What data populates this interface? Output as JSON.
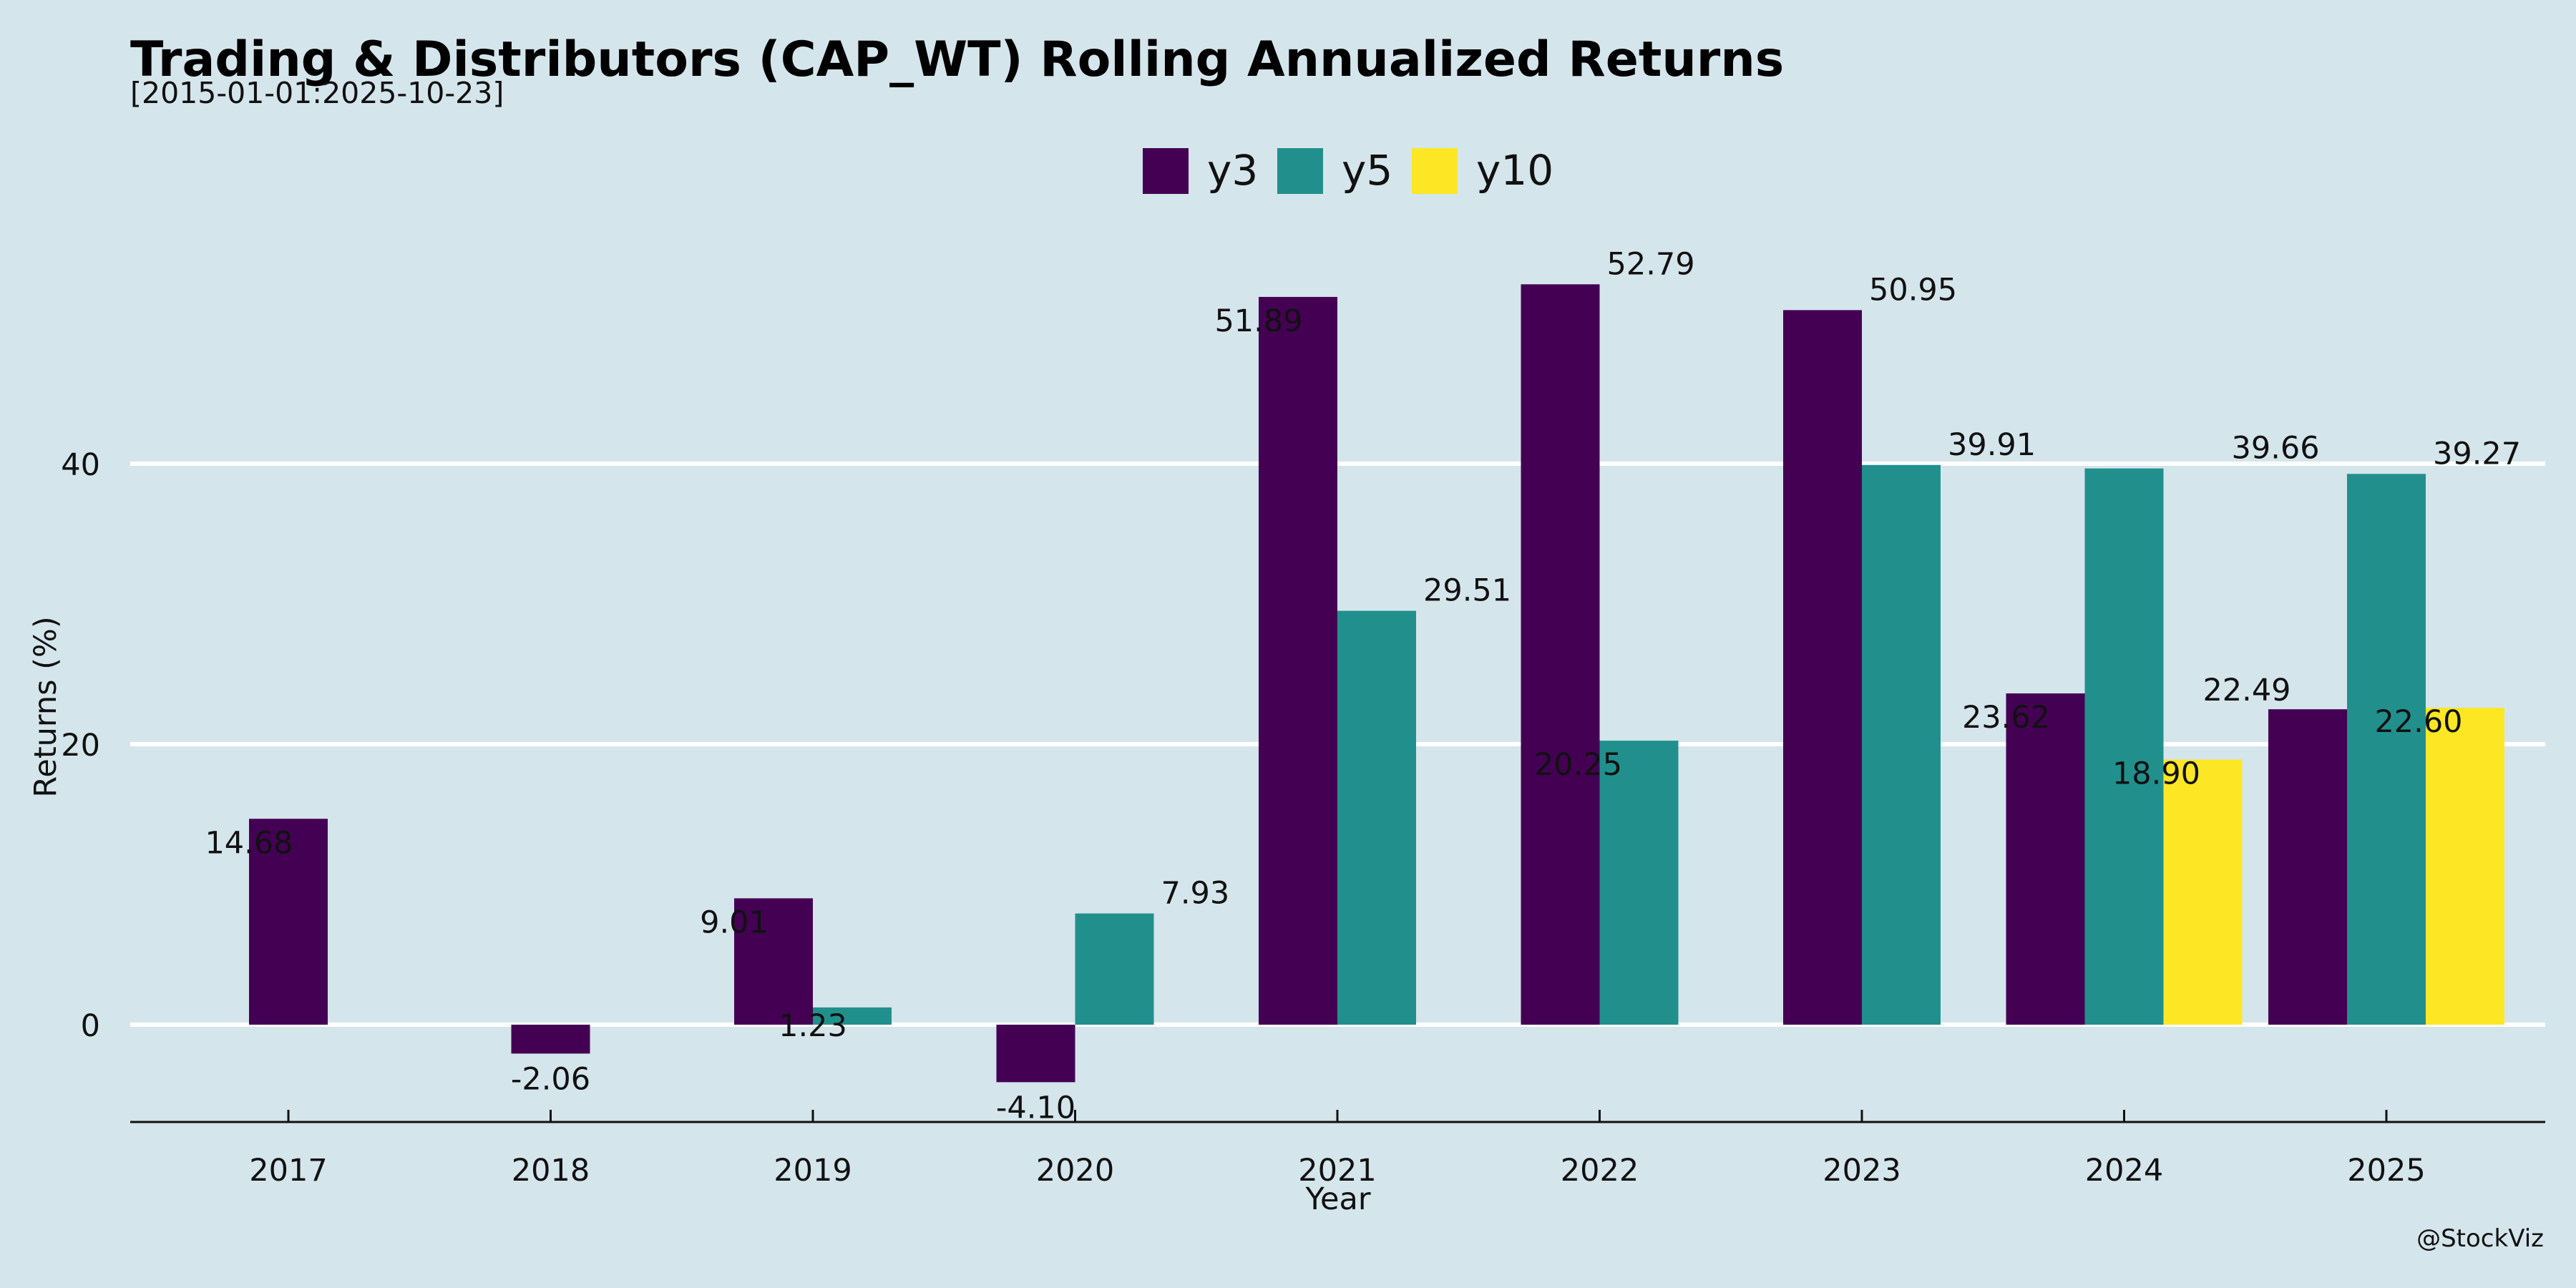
{
  "chart_data": {
    "type": "bar",
    "title": "Trading & Distributors (CAP_WT) Rolling Annualized Returns",
    "subtitle": "[2015-01-01:2025-10-23]",
    "xlabel": "Year",
    "ylabel": "Returns (%)",
    "categories": [
      "2017",
      "2018",
      "2019",
      "2020",
      "2021",
      "2022",
      "2023",
      "2024",
      "2025"
    ],
    "series": [
      {
        "name": "y3",
        "color": "#440154",
        "values": [
          14.68,
          -2.06,
          9.01,
          -4.1,
          51.89,
          52.79,
          50.95,
          23.62,
          22.49
        ],
        "labels": [
          "14.68",
          "-2.06",
          "9.01",
          "-4.10",
          "51.89",
          "52.79",
          "50.95",
          "23.62",
          "22.49"
        ]
      },
      {
        "name": "y5",
        "color": "#21908d",
        "values": [
          null,
          null,
          1.23,
          7.93,
          29.51,
          20.25,
          39.91,
          39.66,
          39.27
        ],
        "labels": [
          null,
          null,
          "1.23",
          "7.93",
          "29.51",
          "20.25",
          "39.91",
          "39.66",
          "39.27"
        ]
      },
      {
        "name": "y10",
        "color": "#fde725",
        "values": [
          null,
          null,
          null,
          null,
          null,
          null,
          null,
          18.9,
          22.6
        ],
        "labels": [
          null,
          null,
          null,
          null,
          null,
          null,
          null,
          "18.90",
          "22.60"
        ]
      }
    ],
    "yticks": [
      0,
      20,
      40
    ],
    "ylim": [
      -7,
      60
    ],
    "grid": true,
    "legend_position": "top-center",
    "credit": "@StockViz"
  }
}
